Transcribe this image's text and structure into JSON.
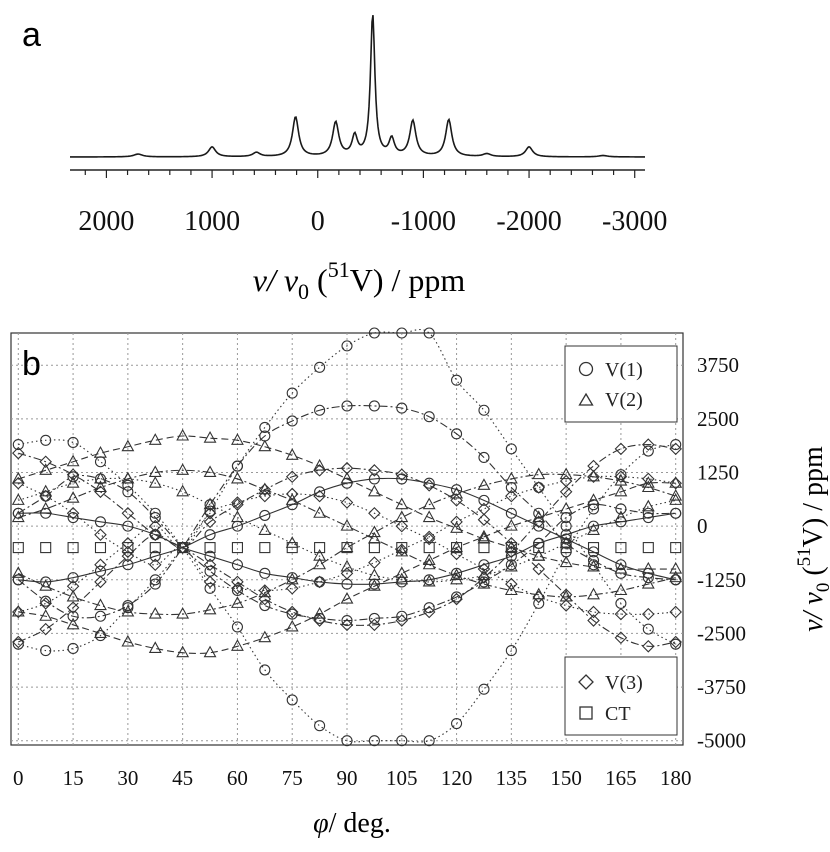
{
  "panel_a": {
    "label": "a",
    "xlabel_main": "ν/ ν",
    "xlabel_sub": "0",
    "xlabel_open": " (",
    "xlabel_sup": "51",
    "xlabel_rest": "V) / ppm"
  },
  "panel_b": {
    "label": "b",
    "xlabel_phi": "φ",
    "xlabel_rest": "/ deg.",
    "ylabel_main": "ν/ ν",
    "ylabel_sub": "0",
    "ylabel_open": " (",
    "ylabel_sup": "51",
    "ylabel_rest": "V) / ppm",
    "legend_top": [
      "V(1)",
      "V(2)"
    ],
    "legend_bottom": [
      "V(3)",
      "CT"
    ]
  },
  "chart_data": [
    {
      "type": "line",
      "panel": "a",
      "title": "",
      "xlabel": "ν/ ν0 (51V) / ppm",
      "ylabel": "",
      "xlim": [
        2250,
        -3050
      ],
      "x_ticks": [
        2000,
        1000,
        0,
        -1000,
        -2000,
        -3000
      ],
      "x_tick_labels": [
        "2000",
        "1000",
        "0",
        "-1000",
        "-2000",
        "-3000"
      ],
      "peaks": [
        {
          "ppm": 1700,
          "height": 0.02,
          "width": 50
        },
        {
          "ppm": 1000,
          "height": 0.07,
          "width": 40
        },
        {
          "ppm": 580,
          "height": 0.03,
          "width": 40
        },
        {
          "ppm": 210,
          "height": 0.28,
          "width": 35
        },
        {
          "ppm": -170,
          "height": 0.24,
          "width": 35
        },
        {
          "ppm": -350,
          "height": 0.14,
          "width": 30
        },
        {
          "ppm": -520,
          "height": 1.0,
          "width": 25
        },
        {
          "ppm": -700,
          "height": 0.12,
          "width": 30
        },
        {
          "ppm": -900,
          "height": 0.25,
          "width": 35
        },
        {
          "ppm": -1240,
          "height": 0.26,
          "width": 35
        },
        {
          "ppm": -1600,
          "height": 0.02,
          "width": 45
        },
        {
          "ppm": -2000,
          "height": 0.07,
          "width": 40
        },
        {
          "ppm": -2700,
          "height": 0.01,
          "width": 50
        }
      ]
    },
    {
      "type": "scatter",
      "panel": "b",
      "title": "",
      "xlabel": "φ/ deg.",
      "ylabel": "ν/ ν0 (51V) / ppm",
      "xlim": [
        -2,
        182
      ],
      "ylim": [
        -5100,
        4500
      ],
      "x_ticks": [
        0,
        15,
        30,
        45,
        60,
        75,
        90,
        105,
        120,
        135,
        150,
        165,
        180
      ],
      "x_tick_labels": [
        "0",
        "15",
        "30",
        "45",
        "60",
        "75",
        "90",
        "105",
        "120",
        "135",
        "150",
        "165",
        "180"
      ],
      "y_ticks": [
        3750,
        2500,
        1250,
        0,
        -1250,
        -2500,
        -3750,
        -5000
      ],
      "y_tick_labels": [
        "3750",
        "2500",
        "1250",
        "0",
        "-1250",
        "-2500",
        "-3750",
        "-5000"
      ],
      "grid": true,
      "legend": [
        "V(1)",
        "V(2)",
        "V(3)",
        "CT"
      ],
      "x": [
        0,
        7.5,
        15,
        22.5,
        30,
        37.5,
        45,
        52.5,
        60,
        67.5,
        75,
        82.5,
        90,
        97.5,
        105,
        112.5,
        120,
        127.5,
        135,
        142.5,
        150,
        157.5,
        165,
        172.5,
        180
      ],
      "series": [
        {
          "name": "V(1)",
          "marker": "circle",
          "curve": "dotted",
          "values": [
            1900,
            2000,
            1950,
            1500,
            950,
            300,
            -500,
            -1450,
            -2350,
            -3350,
            -4050,
            -4650,
            -5000,
            -5000,
            -5000,
            -5000,
            -4600,
            -3800,
            -2900,
            -1800,
            -600,
            400,
            1200,
            1750,
            1900
          ]
        },
        {
          "name": "V(1)",
          "marker": "circle",
          "curve": "dotted",
          "values": [
            -2750,
            -2900,
            -2850,
            -2550,
            -1900,
            -1250,
            -500,
            350,
            1400,
            2300,
            3100,
            3700,
            4200,
            4500,
            4500,
            4500,
            3400,
            2700,
            1800,
            900,
            0,
            -900,
            -1800,
            -2400,
            -2750
          ]
        },
        {
          "name": "V(1)",
          "marker": "circle",
          "curve": "dash-dot",
          "values": [
            300,
            700,
            1150,
            1100,
            800,
            200,
            -500,
            -1050,
            -1500,
            -1850,
            -2050,
            -2150,
            -2200,
            -2150,
            -2100,
            -1900,
            -1650,
            -1300,
            -900,
            -400,
            200,
            500,
            400,
            300,
            300
          ]
        },
        {
          "name": "V(1)",
          "marker": "circle",
          "curve": "dash-dot",
          "values": [
            -1250,
            -1750,
            -2100,
            -2100,
            -1850,
            -1350,
            -500,
            500,
            1400,
            2100,
            2450,
            2700,
            2800,
            2800,
            2750,
            2550,
            2150,
            1600,
            900,
            300,
            -400,
            -800,
            -1100,
            -1200,
            -1250
          ]
        },
        {
          "name": "V(1)",
          "marker": "circle",
          "curve": "solid",
          "values": [
            300,
            300,
            200,
            100,
            0,
            -200,
            -500,
            -700,
            -900,
            -1100,
            -1200,
            -1300,
            -1350,
            -1350,
            -1300,
            -1250,
            -1100,
            -900,
            -700,
            -400,
            -200,
            0,
            100,
            200,
            300
          ]
        },
        {
          "name": "V(1)",
          "marker": "circle",
          "curve": "solid",
          "values": [
            -1250,
            -1300,
            -1200,
            -1050,
            -900,
            -700,
            -500,
            -200,
            0,
            250,
            500,
            800,
            1000,
            1100,
            1100,
            1000,
            850,
            600,
            300,
            0,
            -300,
            -600,
            -900,
            -1100,
            -1250
          ]
        },
        {
          "name": "V(2)",
          "marker": "triangle",
          "curve": "dashed",
          "values": [
            1100,
            1300,
            1500,
            1700,
            1850,
            2000,
            2100,
            2050,
            2000,
            1850,
            1650,
            1400,
            1100,
            800,
            500,
            200,
            -50,
            -300,
            -500,
            -700,
            -850,
            -950,
            -1000,
            -1000,
            -1000
          ]
        },
        {
          "name": "V(2)",
          "marker": "triangle",
          "curve": "dashed",
          "values": [
            -2000,
            -2100,
            -2300,
            -2500,
            -2700,
            -2850,
            -2950,
            -2950,
            -2800,
            -2600,
            -2350,
            -2050,
            -1700,
            -1400,
            -1100,
            -800,
            -500,
            -250,
            0,
            200,
            400,
            600,
            800,
            1000,
            1000
          ]
        },
        {
          "name": "V(2)",
          "marker": "triangle",
          "curve": "dash-dot",
          "values": [
            200,
            400,
            650,
            900,
            1100,
            1250,
            1300,
            1250,
            1100,
            850,
            600,
            300,
            0,
            -300,
            -600,
            -900,
            -1150,
            -1350,
            -1500,
            -1600,
            -1650,
            -1600,
            -1500,
            -1350,
            -1200
          ]
        },
        {
          "name": "V(2)",
          "marker": "triangle",
          "curve": "dash-dot",
          "values": [
            -1100,
            -1400,
            -1650,
            -1850,
            -2000,
            -2050,
            -2050,
            -1950,
            -1800,
            -1550,
            -1250,
            -900,
            -500,
            -150,
            200,
            500,
            750,
            950,
            1100,
            1200,
            1200,
            1150,
            1050,
            900,
            700
          ]
        },
        {
          "name": "V(2)",
          "marker": "triangle",
          "curve": "dotted",
          "values": [
            600,
            800,
            1000,
            1100,
            1100,
            1000,
            800,
            500,
            200,
            -100,
            -400,
            -700,
            -950,
            -1150,
            -1250,
            -1300,
            -1250,
            -1150,
            -950,
            -700,
            -400,
            -100,
            200,
            450,
            600
          ]
        },
        {
          "name": "V(3)",
          "marker": "diamond",
          "curve": "dash-dot",
          "values": [
            1700,
            1500,
            1200,
            800,
            300,
            -200,
            -500,
            -900,
            -1300,
            -1700,
            -2000,
            -2200,
            -2300,
            -2300,
            -2200,
            -2000,
            -1700,
            -1200,
            -600,
            100,
            800,
            1400,
            1800,
            1900,
            1800
          ]
        },
        {
          "name": "V(3)",
          "marker": "diamond",
          "curve": "dash-dot",
          "values": [
            -2700,
            -2400,
            -1900,
            -1300,
            -700,
            -200,
            -500,
            100,
            500,
            850,
            1150,
            1300,
            1350,
            1300,
            1200,
            950,
            600,
            150,
            -400,
            -1000,
            -1600,
            -2200,
            -2600,
            -2800,
            -2700
          ]
        },
        {
          "name": "V(3)",
          "marker": "diamond",
          "curve": "dotted",
          "values": [
            1000,
            700,
            300,
            -200,
            -600,
            -900,
            -500,
            -1300,
            -1450,
            -1500,
            -1450,
            -1300,
            -1100,
            -850,
            -550,
            -250,
            100,
            400,
            700,
            900,
            1050,
            1150,
            1150,
            1100,
            1000
          ]
        },
        {
          "name": "V(3)",
          "marker": "diamond",
          "curve": "dotted",
          "values": [
            -2000,
            -1800,
            -1400,
            -900,
            -400,
            0,
            -500,
            300,
            550,
            700,
            750,
            700,
            550,
            300,
            0,
            -300,
            -650,
            -1000,
            -1350,
            -1650,
            -1850,
            -2000,
            -2050,
            -2050,
            -2000
          ]
        },
        {
          "name": "CT",
          "marker": "square",
          "values": [
            -500,
            -500,
            -500,
            -500,
            -500,
            -500,
            -500,
            -500,
            -500,
            -500,
            -500,
            -500,
            -500,
            -500,
            -500,
            -500,
            -500,
            -500,
            -500,
            -500,
            -500,
            -500,
            -500,
            -500,
            -500
          ]
        }
      ]
    }
  ]
}
